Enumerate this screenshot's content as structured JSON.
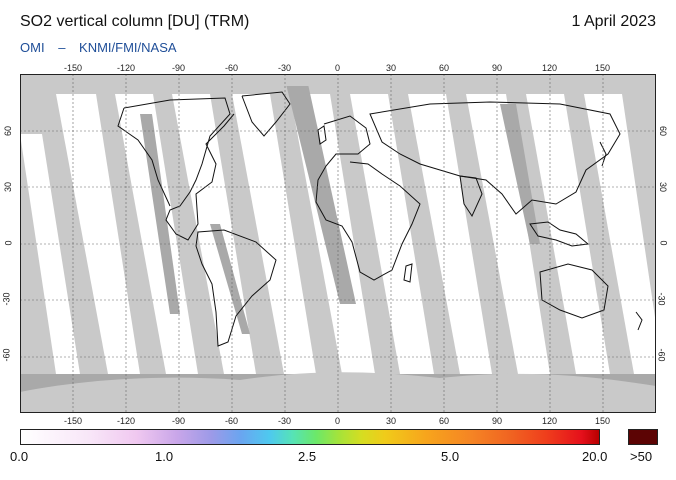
{
  "header": {
    "title": "SO2 vertical column [DU] (TRM)",
    "date": "1 April 2023",
    "credits": [
      "OMI",
      "–",
      "KNMI/FMI/NASA"
    ]
  },
  "map": {
    "lon_ticks": [
      "-150",
      "-120",
      "-90",
      "-60",
      "-30",
      "0",
      "30",
      "60",
      "90",
      "120",
      "150"
    ],
    "lat_ticks": [
      "60",
      "30",
      "0",
      "-30",
      "-60"
    ],
    "lat_ticks_right": [
      "60",
      "30",
      "0",
      "-30",
      "-60"
    ]
  },
  "colorbar": {
    "labels": [
      "0.0",
      "1.0",
      "2.5",
      "5.0",
      "20.0"
    ],
    "overflow_label": ">50",
    "colors": [
      "#ffffff",
      "#f0c8f0",
      "#9c9ae8",
      "#4ec9ef",
      "#6be86a",
      "#d6dd21",
      "#f7a51c",
      "#ef3d1c",
      "#b80000"
    ],
    "overflow_color": "#5c0404"
  }
}
